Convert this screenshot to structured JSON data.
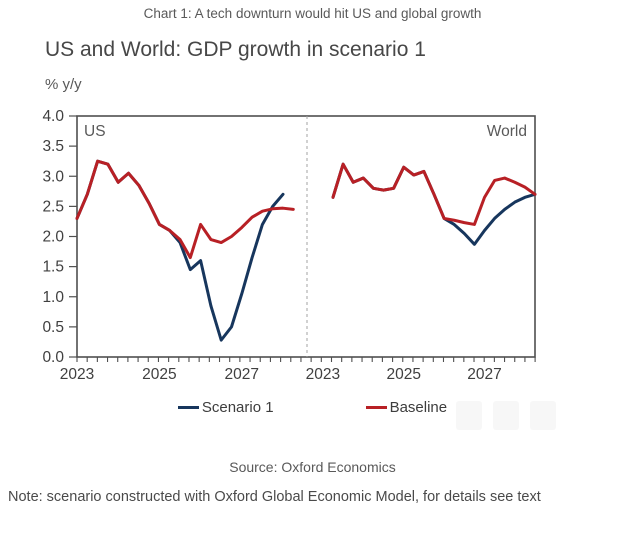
{
  "page": {
    "caption": "Chart 1: A tech downturn would hit US and global growth",
    "title": "US and World: GDP growth in scenario 1",
    "unit_label": "% y/y",
    "source": "Source: Oxford Economics",
    "note": "Note: scenario constructed with Oxford Global Economic Model, for details see text"
  },
  "legend": [
    {
      "label": "Scenario 1",
      "color": "#17365d"
    },
    {
      "label": "Baseline",
      "color": "#b82025"
    }
  ],
  "colors": {
    "scenario1": "#17365d",
    "baseline": "#b82025",
    "axis": "#4f4f4f",
    "tick_label": "#404040",
    "panel_label": "#595959",
    "divider": "#a3a3a3"
  },
  "chart_data": {
    "type": "line",
    "title": "US and World: GDP growth in scenario 1",
    "ylabel": "% y/y",
    "ylim": [
      0,
      4.0
    ],
    "ytick_step": 0.5,
    "x_frequency": "quarterly",
    "x_range": [
      "2023Q1",
      "2028Q2"
    ],
    "grid": false,
    "legend_position": "bottom",
    "panels": [
      {
        "label": "US",
        "xticks": [
          "2023",
          "2025",
          "2027"
        ],
        "xtick_quarter_indices": [
          0,
          8,
          16
        ],
        "series": [
          {
            "name": "Scenario 1",
            "color": "#17365d",
            "values": [
              2.3,
              2.7,
              3.25,
              3.2,
              2.9,
              3.05,
              2.85,
              2.55,
              2.2,
              2.1,
              1.9,
              1.45,
              1.6,
              0.85,
              0.28,
              0.5,
              1.05,
              1.65,
              2.2,
              2.5,
              2.7,
              null
            ]
          },
          {
            "name": "Baseline",
            "color": "#b82025",
            "values": [
              2.3,
              2.7,
              3.25,
              3.2,
              2.9,
              3.05,
              2.85,
              2.55,
              2.2,
              2.1,
              1.95,
              1.65,
              2.2,
              1.95,
              1.9,
              2.0,
              2.15,
              2.32,
              2.42,
              2.46,
              2.47,
              2.45
            ]
          }
        ]
      },
      {
        "label": "World",
        "xticks": [
          "2023",
          "2025",
          "2027"
        ],
        "xtick_quarter_indices": [
          0,
          8,
          16
        ],
        "series": [
          {
            "name": "Scenario 1",
            "color": "#17365d",
            "values": [
              null,
              2.65,
              3.2,
              2.9,
              2.97,
              2.8,
              2.77,
              2.8,
              3.15,
              3.02,
              3.08,
              2.7,
              2.3,
              2.2,
              2.05,
              1.87,
              2.1,
              2.3,
              2.45,
              2.57,
              2.65,
              2.7
            ]
          },
          {
            "name": "Baseline",
            "color": "#b82025",
            "values": [
              null,
              2.65,
              3.2,
              2.9,
              2.97,
              2.8,
              2.77,
              2.8,
              3.15,
              3.02,
              3.08,
              2.7,
              2.3,
              2.27,
              2.23,
              2.2,
              2.65,
              2.93,
              2.97,
              2.9,
              2.82,
              2.7
            ]
          }
        ]
      }
    ]
  }
}
